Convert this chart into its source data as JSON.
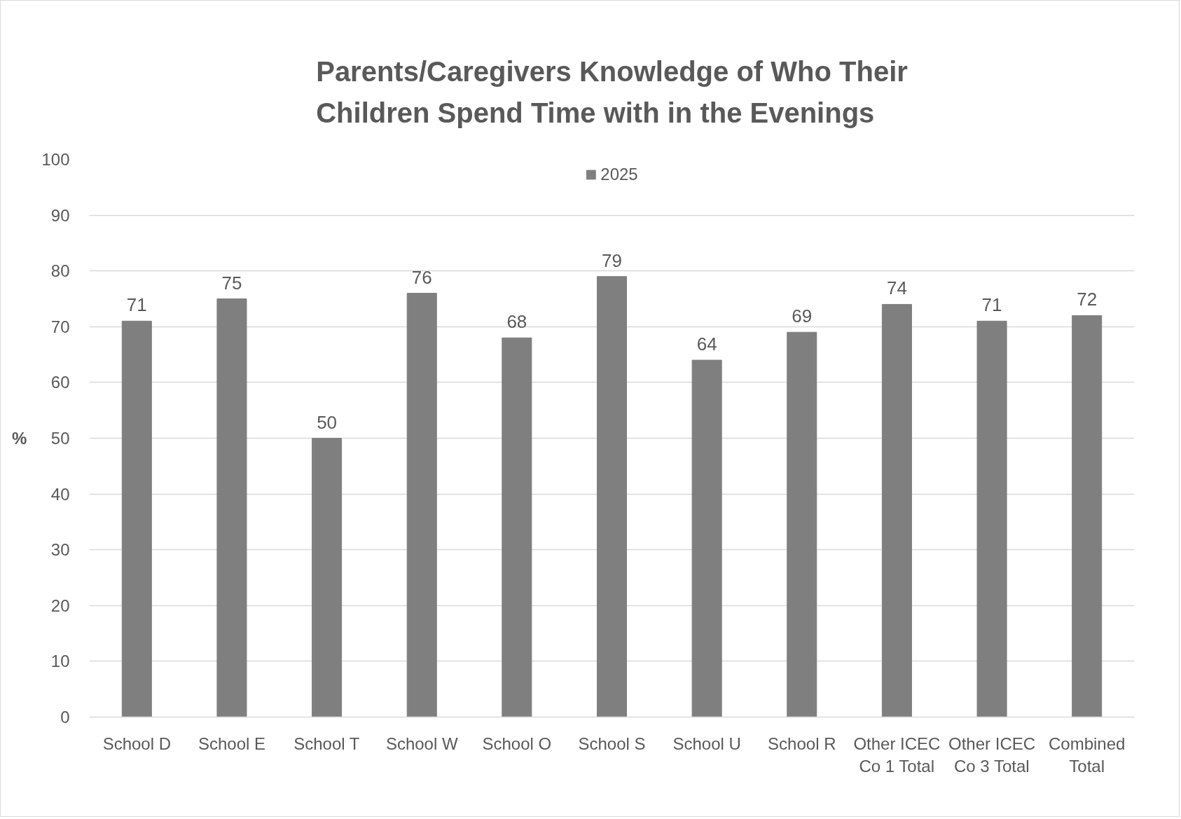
{
  "chart_data": {
    "type": "bar",
    "title": "Parents/Caregivers Knowledge of Who Their\nChildren Spend Time with in the Evenings",
    "ylabel": "%",
    "categories": [
      "School D",
      "School E",
      "School T",
      "School W",
      "School O",
      "School S",
      "School U",
      "School R",
      "Other ICEC\nCo 1 Total",
      "Other ICEC\nCo 3 Total",
      "Combined\nTotal"
    ],
    "series": [
      {
        "name": "2025",
        "color": "#7f7f7f",
        "values": [
          71,
          75,
          50,
          76,
          68,
          79,
          64,
          69,
          74,
          71,
          72
        ]
      }
    ],
    "ylim": [
      0,
      100
    ],
    "yticks": [
      0,
      10,
      20,
      30,
      40,
      50,
      60,
      70,
      80,
      90,
      100
    ],
    "grid": "y",
    "legend": "top",
    "data_labels": true
  }
}
